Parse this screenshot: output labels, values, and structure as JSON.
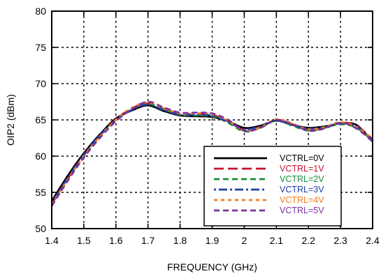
{
  "chart_data": {
    "type": "line",
    "title": "",
    "xlabel": "FREQUENCY (GHz)",
    "ylabel": "OIP2 (dBm)",
    "xlim": [
      1.4,
      2.4
    ],
    "ylim": [
      50,
      80
    ],
    "xticks": [
      "1.4",
      "1.5",
      "1.6",
      "1.7",
      "1.8",
      "1.9",
      "2",
      "2.1",
      "2.2",
      "2.3",
      "2.4"
    ],
    "yticks": [
      "50",
      "55",
      "60",
      "65",
      "70",
      "75",
      "80"
    ],
    "grid": true,
    "legend_position": "bottom-right",
    "series": [
      {
        "name": "VCTRL=0V",
        "color": "#000000",
        "dash": "solid",
        "x": [
          1.4,
          1.45,
          1.5,
          1.55,
          1.6,
          1.65,
          1.7,
          1.75,
          1.8,
          1.85,
          1.9,
          1.95,
          2.0,
          2.05,
          2.1,
          2.15,
          2.2,
          2.25,
          2.3,
          2.35,
          2.4
        ],
        "y": [
          53.8,
          57.3,
          60.4,
          63.0,
          65.2,
          66.3,
          67.0,
          66.2,
          65.6,
          65.5,
          65.4,
          64.8,
          63.9,
          64.2,
          64.9,
          64.3,
          63.9,
          64.1,
          64.5,
          64.3,
          62.0
        ]
      },
      {
        "name": "VCTRL=1V",
        "color": "#c8102e",
        "dash": "long",
        "x": [
          1.4,
          1.45,
          1.5,
          1.55,
          1.6,
          1.65,
          1.7,
          1.75,
          1.8,
          1.85,
          1.9,
          1.95,
          2.0,
          2.05,
          2.1,
          2.15,
          2.2,
          2.25,
          2.3,
          2.35,
          2.4
        ],
        "y": [
          53.4,
          56.9,
          60.1,
          62.8,
          65.1,
          66.6,
          67.3,
          66.5,
          65.8,
          65.8,
          65.7,
          64.8,
          63.6,
          64.0,
          65.0,
          64.4,
          63.6,
          63.9,
          64.6,
          64.2,
          62.3
        ]
      },
      {
        "name": "VCTRL=2V",
        "color": "#1a8a3a",
        "dash": "medium",
        "x": [
          1.4,
          1.45,
          1.5,
          1.55,
          1.6,
          1.65,
          1.7,
          1.75,
          1.8,
          1.85,
          1.9,
          1.95,
          2.0,
          2.05,
          2.1,
          2.15,
          2.2,
          2.25,
          2.3,
          2.35,
          2.4
        ],
        "y": [
          53.2,
          56.7,
          59.9,
          62.6,
          64.9,
          66.5,
          67.2,
          66.4,
          65.7,
          65.6,
          65.5,
          64.6,
          63.4,
          63.9,
          64.9,
          64.2,
          63.5,
          63.9,
          64.4,
          63.9,
          62.1
        ]
      },
      {
        "name": "VCTRL=3V",
        "color": "#1f3fa8",
        "dash": "dashdot",
        "x": [
          1.4,
          1.45,
          1.5,
          1.55,
          1.6,
          1.65,
          1.7,
          1.75,
          1.8,
          1.85,
          1.9,
          1.95,
          2.0,
          2.05,
          2.1,
          2.15,
          2.2,
          2.25,
          2.3,
          2.35,
          2.4
        ],
        "y": [
          53.5,
          57.0,
          60.2,
          62.9,
          65.0,
          66.4,
          67.1,
          66.3,
          65.7,
          65.7,
          65.6,
          64.7,
          63.7,
          64.1,
          64.9,
          64.3,
          63.8,
          64.0,
          64.5,
          64.1,
          62.2
        ]
      },
      {
        "name": "VCTRL=4V",
        "color": "#f07c1e",
        "dash": "short",
        "x": [
          1.4,
          1.45,
          1.5,
          1.55,
          1.6,
          1.65,
          1.7,
          1.75,
          1.8,
          1.85,
          1.9,
          1.95,
          2.0,
          2.05,
          2.1,
          2.15,
          2.2,
          2.25,
          2.3,
          2.35,
          2.4
        ],
        "y": [
          53.3,
          56.8,
          60.0,
          62.7,
          65.0,
          66.7,
          67.4,
          66.6,
          65.9,
          65.9,
          65.8,
          64.9,
          63.5,
          64.0,
          65.1,
          64.5,
          63.7,
          64.0,
          64.7,
          64.0,
          62.4
        ]
      },
      {
        "name": "VCTRL=5V",
        "color": "#7b2fa0",
        "dash": "medium",
        "x": [
          1.4,
          1.45,
          1.5,
          1.55,
          1.6,
          1.65,
          1.7,
          1.75,
          1.8,
          1.85,
          1.9,
          1.95,
          2.0,
          2.05,
          2.1,
          2.15,
          2.2,
          2.25,
          2.3,
          2.35,
          2.4
        ],
        "y": [
          53.1,
          56.6,
          59.8,
          62.5,
          64.8,
          66.5,
          67.5,
          66.7,
          66.0,
          66.0,
          65.9,
          65.0,
          63.5,
          63.9,
          65.0,
          64.4,
          63.5,
          63.8,
          64.6,
          63.8,
          62.0
        ]
      }
    ]
  }
}
